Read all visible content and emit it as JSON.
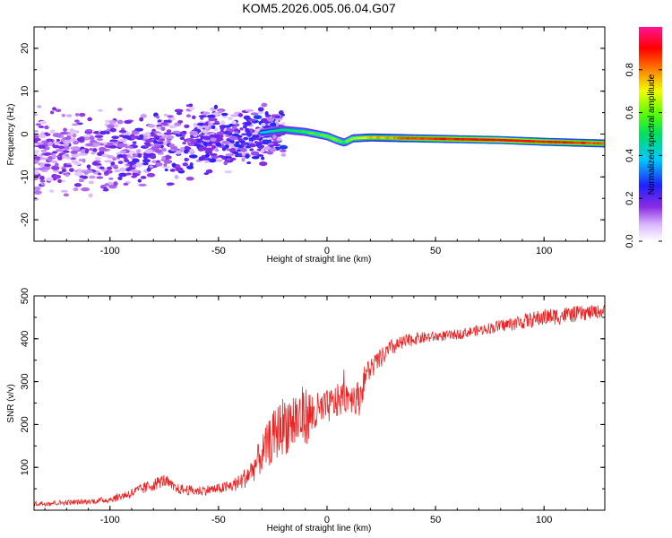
{
  "title": "KOM5.2026.005.06.04.G07",
  "chart_data": [
    {
      "type": "heatmap",
      "title": "KOM5.2026.005.06.04.G07",
      "xlabel": "Height of straight line (km)",
      "ylabel": "Frequency (Hz)",
      "xlim": [
        -135,
        128
      ],
      "ylim": [
        -25,
        25
      ],
      "xticks": [
        -100,
        -50,
        0,
        50,
        100
      ],
      "yticks": [
        -20,
        -10,
        0,
        10,
        20
      ],
      "xtick_labels": [
        "-100",
        "-50",
        "0",
        "50",
        "100"
      ],
      "ytick_labels": [
        "-20",
        "-10",
        "0",
        "10",
        "20"
      ],
      "colorbar": {
        "label": "Normalized spectral amplitude",
        "range": [
          0,
          1
        ],
        "ticks": [
          "0.0",
          "0.2",
          "0.4",
          "0.6",
          "0.8"
        ],
        "colormap": "rainbow (white-purple-blue-cyan-green-yellow-red-pink)"
      },
      "ridge_line": {
        "description": "dominant spectral peak frequency vs height",
        "x": [
          -130,
          -110,
          -90,
          -70,
          -50,
          -35,
          -20,
          -10,
          0,
          5,
          8,
          12,
          20,
          40,
          60,
          80,
          100,
          128
        ],
        "y": [
          -5,
          -4.5,
          -3.5,
          -2,
          -1.5,
          0,
          1,
          0.5,
          -0.5,
          -1.5,
          -2,
          -1,
          -0.8,
          -1,
          -1.2,
          -1.4,
          -1.8,
          -2.2
        ],
        "amplitude": [
          0.1,
          0.15,
          0.2,
          0.22,
          0.3,
          0.35,
          0.45,
          0.5,
          0.55,
          0.55,
          0.5,
          0.6,
          0.7,
          0.8,
          0.85,
          0.88,
          0.85,
          0.8
        ]
      }
    },
    {
      "type": "line",
      "xlabel": "Height of straight line (km)",
      "ylabel": "SNR (v/v)",
      "xlim": [
        -135,
        128
      ],
      "ylim": [
        0,
        500
      ],
      "xticks": [
        -100,
        -50,
        0,
        50,
        100
      ],
      "yticks": [
        100,
        200,
        300,
        400,
        500
      ],
      "xtick_labels": [
        "-100",
        "-50",
        "0",
        "50",
        "100"
      ],
      "ytick_labels": [
        "100",
        "200",
        "300",
        "400",
        "500"
      ],
      "color": "#ee2222",
      "series": [
        {
          "name": "SNR",
          "x": [
            -135,
            -120,
            -110,
            -100,
            -90,
            -80,
            -75,
            -70,
            -60,
            -50,
            -45,
            -40,
            -35,
            -30,
            -25,
            -20,
            -15,
            -10,
            -5,
            0,
            5,
            10,
            15,
            18,
            22,
            30,
            40,
            50,
            60,
            70,
            80,
            90,
            100,
            110,
            128
          ],
          "y": [
            15,
            18,
            20,
            25,
            40,
            60,
            70,
            50,
            45,
            50,
            55,
            65,
            90,
            130,
            170,
            200,
            210,
            220,
            225,
            240,
            255,
            270,
            260,
            320,
            340,
            380,
            400,
            405,
            410,
            420,
            430,
            440,
            450,
            455,
            465
          ],
          "noise": [
            6,
            6,
            6,
            8,
            12,
            15,
            15,
            12,
            12,
            12,
            15,
            20,
            30,
            45,
            60,
            70,
            80,
            70,
            50,
            40,
            40,
            40,
            40,
            30,
            25,
            20,
            15,
            12,
            12,
            12,
            15,
            18,
            20,
            20,
            15
          ]
        }
      ]
    }
  ]
}
